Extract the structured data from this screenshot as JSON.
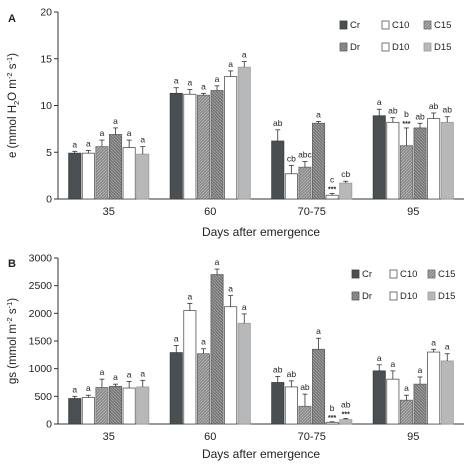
{
  "patterns": [
    "solid-dark",
    "open",
    "hatch-grey",
    "hatch-dark",
    "open",
    "light-grey"
  ],
  "chart_data": [
    {
      "type": "bar",
      "panel_label": "A",
      "xlabel": "Days after emergence",
      "ylabel_parts": [
        "e (mmol H",
        "2",
        "O m",
        "-2",
        " s",
        "-1",
        ")"
      ],
      "ylim": [
        0,
        20
      ],
      "yticks": [
        "0",
        "5",
        "10",
        "15",
        "20"
      ],
      "categories": [
        "35",
        "60",
        "70-75",
        "95"
      ],
      "legend_placement": "top-right",
      "series": [
        {
          "name": "Cr",
          "values": [
            4.9,
            11.3,
            6.2,
            8.9
          ],
          "errors": [
            0.2,
            0.6,
            1.2,
            0.7
          ],
          "labels": [
            "a",
            "a",
            "ab",
            "a"
          ],
          "stars": [
            "",
            "",
            "",
            ""
          ]
        },
        {
          "name": "C10",
          "values": [
            4.9,
            11.2,
            2.7,
            8.2
          ],
          "errors": [
            0.3,
            0.5,
            0.9,
            0.5
          ],
          "labels": [
            "a",
            "a",
            "cb",
            "ab"
          ],
          "stars": [
            "",
            "",
            "",
            ""
          ]
        },
        {
          "name": "C15",
          "values": [
            5.6,
            11.1,
            3.4,
            5.7
          ],
          "errors": [
            0.7,
            0.2,
            0.6,
            1.9
          ],
          "labels": [
            "a",
            "a",
            "abc",
            "b"
          ],
          "stars": [
            "",
            "",
            "",
            "***"
          ]
        },
        {
          "name": "Dr",
          "values": [
            6.9,
            11.6,
            8.1,
            7.6
          ],
          "errors": [
            0.7,
            0.5,
            0.2,
            0.5
          ],
          "labels": [
            "a",
            "a",
            "a",
            "ab"
          ],
          "stars": [
            "",
            "",
            "",
            ""
          ]
        },
        {
          "name": "D10",
          "values": [
            5.5,
            13.1,
            0.4,
            8.6
          ],
          "errors": [
            0.8,
            0.6,
            0.2,
            0.6
          ],
          "labels": [
            "a",
            "a",
            "c",
            "ab"
          ],
          "stars": [
            "",
            "",
            "***",
            ""
          ]
        },
        {
          "name": "D15",
          "values": [
            4.8,
            14.1,
            1.7,
            8.2
          ],
          "errors": [
            0.8,
            0.6,
            0.2,
            0.6
          ],
          "labels": [
            "a",
            "a",
            "cb",
            "ab"
          ],
          "stars": [
            "",
            "",
            "",
            ""
          ]
        }
      ]
    },
    {
      "type": "bar",
      "panel_label": "B",
      "xlabel": "Days after emergence",
      "ylabel_parts": [
        "gs  (mmol m",
        "-2",
        " s",
        "-1",
        ")"
      ],
      "ylim": [
        0,
        3000
      ],
      "yticks": [
        "0",
        "500",
        "1000",
        "1500",
        "2000",
        "2500",
        "3000"
      ],
      "categories": [
        "35",
        "60",
        "70-75",
        "95"
      ],
      "legend_placement": "top-right",
      "series": [
        {
          "name": "Cr",
          "values": [
            460,
            1290,
            750,
            960
          ],
          "errors": [
            40,
            130,
            110,
            110
          ],
          "labels": [
            "a",
            "a",
            "ab",
            "a"
          ],
          "stars": [
            "",
            "",
            "",
            ""
          ]
        },
        {
          "name": "C10",
          "values": [
            480,
            2050,
            670,
            810
          ],
          "errors": [
            40,
            130,
            110,
            150
          ],
          "labels": [
            "a",
            "a",
            "ab",
            "a"
          ],
          "stars": [
            "",
            "",
            "",
            ""
          ]
        },
        {
          "name": "C15",
          "values": [
            660,
            1270,
            320,
            430
          ],
          "errors": [
            150,
            90,
            220,
            90
          ],
          "labels": [
            "a",
            "a",
            "ab",
            "a"
          ],
          "stars": [
            "",
            "",
            "",
            ""
          ]
        },
        {
          "name": "Dr",
          "values": [
            680,
            2700,
            1350,
            720
          ],
          "errors": [
            40,
            100,
            200,
            130
          ],
          "labels": [
            "a",
            "a",
            "a",
            "a"
          ],
          "stars": [
            "",
            "",
            "",
            ""
          ]
        },
        {
          "name": "D10",
          "values": [
            650,
            2120,
            30,
            1300
          ],
          "errors": [
            120,
            200,
            10,
            50
          ],
          "labels": [
            "a",
            "a",
            "b",
            "a"
          ],
          "stars": [
            "",
            "",
            "***",
            ""
          ]
        },
        {
          "name": "D15",
          "values": [
            670,
            1820,
            80,
            1140
          ],
          "errors": [
            120,
            170,
            20,
            130
          ],
          "labels": [
            "a",
            "a",
            "ab",
            "a"
          ],
          "stars": [
            "",
            "",
            "***",
            ""
          ]
        }
      ]
    }
  ]
}
